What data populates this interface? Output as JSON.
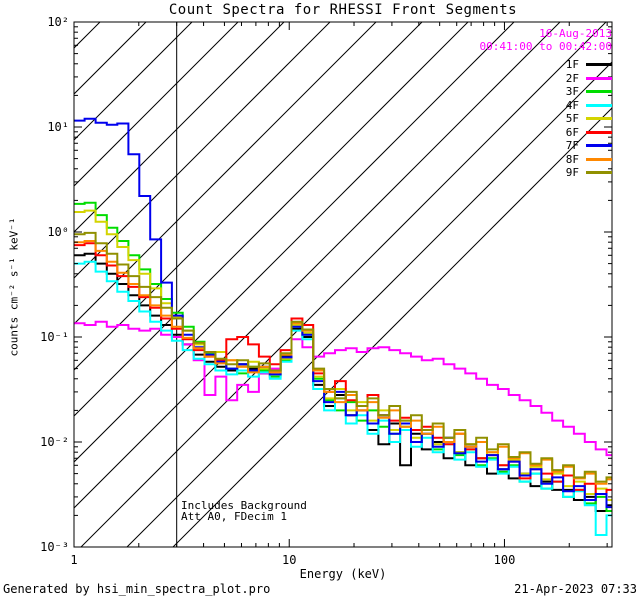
{
  "header": {
    "title": "Count Spectra for RHESSI Front Segments"
  },
  "info": {
    "date": "16-Aug-2013",
    "time_range": "00:41:00 to 00:42:00",
    "text_color": "#FF00FF"
  },
  "annotations": {
    "line1": "Includes Background",
    "line2": "Att A0, FDecim 1"
  },
  "footer": {
    "left": "Generated by hsi_min_spectra_plot.pro",
    "right": "21-Apr-2023 07:33"
  },
  "chart_data": {
    "type": "line",
    "step_mode": "histogram",
    "title": "Count Spectra for RHESSI Front Segments",
    "xlabel": "Energy (keV)",
    "ylabel": "counts cm⁻² s⁻¹ keV⁻¹",
    "xscale": "log",
    "yscale": "log",
    "xlim": [
      1,
      316
    ],
    "ylim": [
      0.001,
      100
    ],
    "grid": false,
    "legend_position": "top-right",
    "x_ticks": [
      {
        "v": 1,
        "label": "1"
      },
      {
        "v": 10,
        "label": "10"
      },
      {
        "v": 100,
        "label": "100"
      }
    ],
    "y_ticks": [
      {
        "v": 100,
        "label": "10²"
      },
      {
        "v": 10,
        "label": "10¹"
      },
      {
        "v": 1,
        "label": "10⁰"
      },
      {
        "v": 0.1,
        "label": "10⁻¹"
      },
      {
        "v": 0.01,
        "label": "10⁻²"
      },
      {
        "v": 0.001,
        "label": "10⁻³"
      }
    ],
    "hatch_region": {
      "x_start": 1,
      "x_end": 3,
      "style": "diagonal-hatch"
    },
    "x_bins_kev": [
      1.0,
      1.12,
      1.26,
      1.42,
      1.59,
      1.79,
      2.01,
      2.26,
      2.54,
      2.85,
      3.2,
      3.6,
      4.04,
      4.54,
      5.1,
      5.73,
      6.44,
      7.23,
      8.12,
      9.12,
      10.25,
      11.51,
      12.93,
      14.52,
      16.31,
      18.32,
      20.58,
      23.11,
      25.96,
      29.16,
      32.75,
      36.79,
      41.32,
      46.41,
      52.13,
      58.56,
      65.77,
      73.88,
      82.98,
      93.2,
      104.7,
      117.6,
      132.1,
      148.4,
      166.7,
      187.2,
      210.3,
      236.2,
      265.3,
      298.0
    ],
    "series": [
      {
        "name": "1F",
        "color": "#000000",
        "values": [
          0.6,
          0.62,
          0.5,
          0.4,
          0.32,
          0.25,
          0.2,
          0.16,
          0.13,
          0.105,
          0.085,
          0.068,
          0.058,
          0.052,
          0.048,
          0.055,
          0.05,
          0.045,
          0.048,
          0.065,
          0.12,
          0.1,
          0.035,
          0.022,
          0.028,
          0.018,
          0.02,
          0.013,
          0.0095,
          0.015,
          0.006,
          0.012,
          0.0085,
          0.01,
          0.007,
          0.008,
          0.006,
          0.007,
          0.005,
          0.0055,
          0.0045,
          0.005,
          0.0038,
          0.0042,
          0.0035,
          0.0035,
          0.0028,
          0.003,
          0.0022,
          0.0025
        ]
      },
      {
        "name": "2F",
        "color": "#FF00FF",
        "values": [
          0.135,
          0.13,
          0.14,
          0.125,
          0.13,
          0.12,
          0.115,
          0.12,
          0.105,
          0.1,
          0.085,
          0.06,
          0.028,
          0.042,
          0.025,
          0.035,
          0.03,
          0.045,
          0.05,
          0.06,
          0.095,
          0.08,
          0.065,
          0.07,
          0.075,
          0.078,
          0.072,
          0.078,
          0.08,
          0.075,
          0.07,
          0.065,
          0.06,
          0.062,
          0.055,
          0.05,
          0.045,
          0.04,
          0.035,
          0.032,
          0.028,
          0.025,
          0.022,
          0.019,
          0.016,
          0.014,
          0.012,
          0.01,
          0.0085,
          0.0075
        ]
      },
      {
        "name": "3F",
        "color": "#00DD00",
        "values": [
          1.85,
          1.9,
          1.45,
          1.1,
          0.82,
          0.6,
          0.44,
          0.32,
          0.23,
          0.17,
          0.125,
          0.09,
          0.07,
          0.058,
          0.05,
          0.045,
          0.052,
          0.048,
          0.042,
          0.06,
          0.125,
          0.105,
          0.04,
          0.025,
          0.02,
          0.024,
          0.016,
          0.02,
          0.014,
          0.012,
          0.014,
          0.01,
          0.012,
          0.0085,
          0.01,
          0.0075,
          0.0085,
          0.006,
          0.007,
          0.0052,
          0.006,
          0.0042,
          0.005,
          0.0036,
          0.0042,
          0.003,
          0.0035,
          0.0026,
          0.003,
          0.0022
        ]
      },
      {
        "name": "4F",
        "color": "#00FFFF",
        "values": [
          0.5,
          0.52,
          0.42,
          0.34,
          0.27,
          0.22,
          0.175,
          0.14,
          0.115,
          0.092,
          0.075,
          0.062,
          0.055,
          0.048,
          0.044,
          0.048,
          0.042,
          0.046,
          0.04,
          0.058,
          0.115,
          0.095,
          0.032,
          0.02,
          0.026,
          0.015,
          0.018,
          0.012,
          0.016,
          0.01,
          0.013,
          0.009,
          0.011,
          0.008,
          0.0095,
          0.0068,
          0.008,
          0.0058,
          0.0068,
          0.005,
          0.0058,
          0.0042,
          0.005,
          0.0036,
          0.0042,
          0.003,
          0.0034,
          0.0025,
          0.0013,
          0.002
        ]
      },
      {
        "name": "5F",
        "color": "#D4D400",
        "values": [
          1.55,
          1.6,
          1.25,
          0.95,
          0.72,
          0.54,
          0.4,
          0.29,
          0.21,
          0.155,
          0.115,
          0.085,
          0.068,
          0.072,
          0.06,
          0.052,
          0.058,
          0.05,
          0.044,
          0.062,
          0.13,
          0.11,
          0.042,
          0.026,
          0.032,
          0.02,
          0.024,
          0.016,
          0.02,
          0.013,
          0.016,
          0.011,
          0.013,
          0.0095,
          0.011,
          0.008,
          0.0095,
          0.007,
          0.008,
          0.006,
          0.0068,
          0.005,
          0.0058,
          0.0044,
          0.005,
          0.0038,
          0.0042,
          0.0032,
          0.0036,
          0.0028
        ]
      },
      {
        "name": "6F",
        "color": "#FF0000",
        "values": [
          0.75,
          0.78,
          0.6,
          0.48,
          0.38,
          0.3,
          0.24,
          0.19,
          0.15,
          0.12,
          0.095,
          0.075,
          0.065,
          0.06,
          0.095,
          0.1,
          0.085,
          0.065,
          0.055,
          0.075,
          0.15,
          0.13,
          0.045,
          0.03,
          0.038,
          0.025,
          0.022,
          0.028,
          0.018,
          0.016,
          0.017,
          0.013,
          0.014,
          0.011,
          0.0095,
          0.012,
          0.0085,
          0.007,
          0.0075,
          0.006,
          0.0065,
          0.0045,
          0.0055,
          0.005,
          0.0042,
          0.0048,
          0.0035,
          0.004,
          0.0032,
          0.0035
        ]
      },
      {
        "name": "7F",
        "color": "#0000EE",
        "values": [
          11.5,
          12.0,
          11.0,
          10.5,
          10.8,
          5.5,
          2.2,
          0.85,
          0.33,
          0.16,
          0.105,
          0.08,
          0.068,
          0.058,
          0.05,
          0.055,
          0.048,
          0.052,
          0.044,
          0.064,
          0.125,
          0.105,
          0.038,
          0.024,
          0.03,
          0.018,
          0.022,
          0.015,
          0.018,
          0.012,
          0.015,
          0.01,
          0.012,
          0.009,
          0.011,
          0.0078,
          0.009,
          0.0065,
          0.0075,
          0.0055,
          0.0065,
          0.0048,
          0.0055,
          0.004,
          0.0046,
          0.0034,
          0.0038,
          0.0028,
          0.0032,
          0.0024
        ]
      },
      {
        "name": "8F",
        "color": "#FF8800",
        "values": [
          0.8,
          0.82,
          0.66,
          0.52,
          0.41,
          0.32,
          0.25,
          0.2,
          0.16,
          0.125,
          0.098,
          0.078,
          0.065,
          0.056,
          0.06,
          0.052,
          0.046,
          0.052,
          0.046,
          0.068,
          0.135,
          0.115,
          0.048,
          0.03,
          0.024,
          0.028,
          0.02,
          0.024,
          0.017,
          0.02,
          0.014,
          0.016,
          0.012,
          0.014,
          0.01,
          0.012,
          0.009,
          0.01,
          0.008,
          0.009,
          0.007,
          0.0078,
          0.006,
          0.0068,
          0.0052,
          0.0058,
          0.0045,
          0.005,
          0.004,
          0.0044
        ]
      },
      {
        "name": "9F",
        "color": "#909000",
        "values": [
          0.95,
          0.98,
          0.78,
          0.62,
          0.49,
          0.38,
          0.3,
          0.24,
          0.19,
          0.15,
          0.115,
          0.088,
          0.072,
          0.062,
          0.055,
          0.06,
          0.052,
          0.056,
          0.048,
          0.07,
          0.14,
          0.118,
          0.05,
          0.032,
          0.026,
          0.03,
          0.022,
          0.026,
          0.018,
          0.022,
          0.016,
          0.018,
          0.013,
          0.015,
          0.011,
          0.013,
          0.0095,
          0.011,
          0.0085,
          0.0095,
          0.0072,
          0.008,
          0.0062,
          0.007,
          0.0054,
          0.006,
          0.0046,
          0.0052,
          0.0042,
          0.0046
        ]
      }
    ]
  }
}
